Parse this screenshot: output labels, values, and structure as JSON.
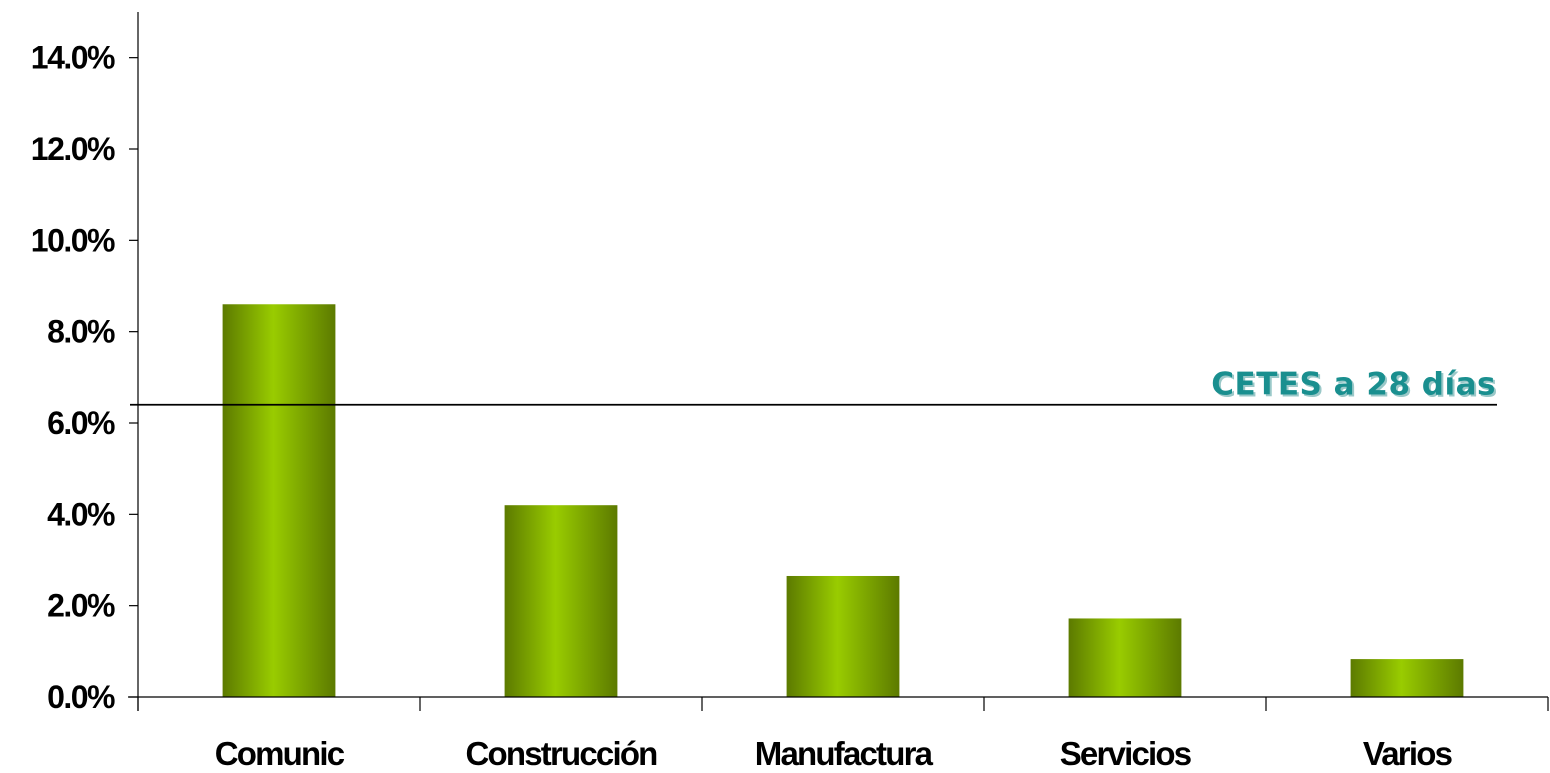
{
  "chart_data": {
    "type": "bar",
    "categories": [
      "Comunic",
      "Construcción",
      "Manufactura",
      "Servicios",
      "Varios"
    ],
    "values": [
      8.6,
      4.2,
      2.65,
      1.72,
      0.83
    ],
    "ylim": [
      0,
      15
    ],
    "yticks": [
      {
        "value": 0,
        "label": "0.0%"
      },
      {
        "value": 2,
        "label": "2.0%"
      },
      {
        "value": 4,
        "label": "4.0%"
      },
      {
        "value": 6,
        "label": "6.0%"
      },
      {
        "value": 8,
        "label": "8.0%"
      },
      {
        "value": 10,
        "label": "10.0%"
      },
      {
        "value": 12,
        "label": "12.0%"
      },
      {
        "value": 14,
        "label": "14.0%"
      }
    ],
    "title": "",
    "xlabel": "",
    "ylabel": "",
    "grid": false,
    "legend": "none",
    "reference_line": {
      "value": 6.4,
      "label": "CETES a 28 días"
    },
    "colors": {
      "bar_light": "#99cc00",
      "bar_dark": "#5c7a00",
      "reference_label": "#1a8f8f",
      "reference_label_shadow": "#9ac8c8",
      "axis": "#000000"
    }
  }
}
